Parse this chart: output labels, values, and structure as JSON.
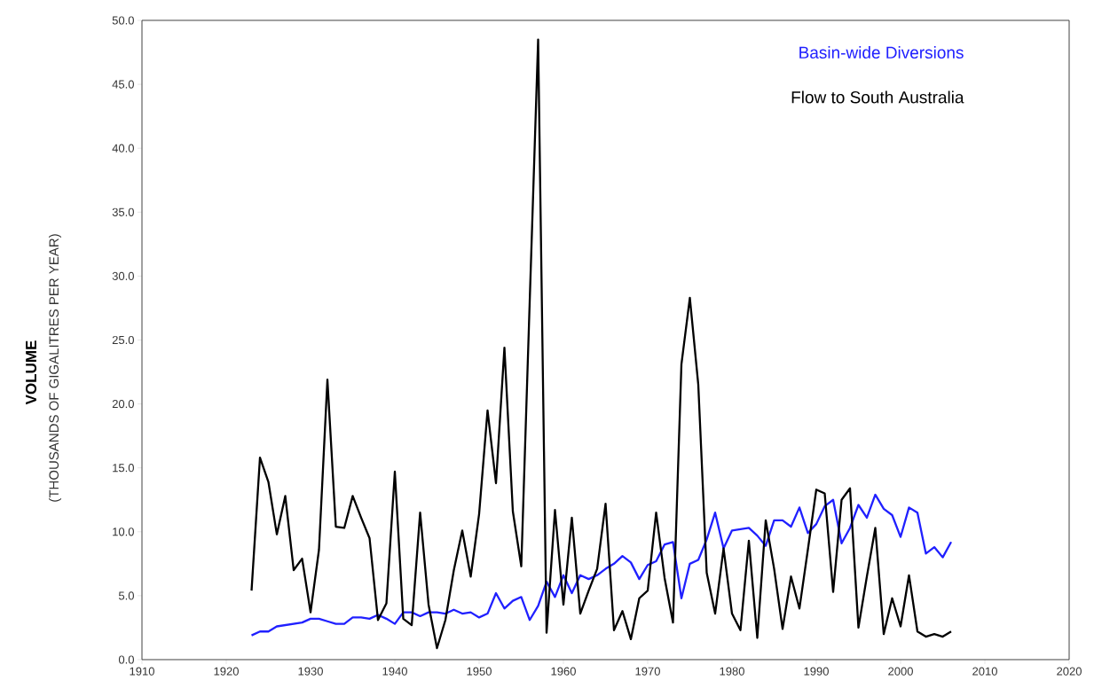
{
  "chart_data": {
    "type": "line",
    "ylabel": "(THOUSANDS OF GIGALITRES PER YEAR)",
    "annotations": [
      "VOLUME"
    ],
    "x": [
      1923,
      1924,
      1925,
      1926,
      1927,
      1928,
      1929,
      1930,
      1931,
      1932,
      1933,
      1934,
      1935,
      1936,
      1937,
      1938,
      1939,
      1940,
      1941,
      1942,
      1943,
      1944,
      1945,
      1946,
      1947,
      1948,
      1949,
      1950,
      1951,
      1952,
      1953,
      1954,
      1955,
      1956,
      1957,
      1958,
      1959,
      1960,
      1961,
      1962,
      1963,
      1964,
      1965,
      1966,
      1967,
      1968,
      1969,
      1970,
      1971,
      1972,
      1973,
      1974,
      1975,
      1976,
      1977,
      1978,
      1979,
      1980,
      1981,
      1982,
      1983,
      1984,
      1985,
      1986,
      1987,
      1988,
      1989,
      1990,
      1991,
      1992,
      1993,
      1994,
      1995,
      1996,
      1997,
      1998,
      1999,
      2000,
      2001,
      2002,
      2003,
      2004,
      2005,
      2006
    ],
    "series": [
      {
        "name": "Basin-wide Diversions",
        "color": "#2020ff",
        "values": [
          1.9,
          2.2,
          2.2,
          2.6,
          2.7,
          2.8,
          2.9,
          3.2,
          3.2,
          3.0,
          2.8,
          2.8,
          3.3,
          3.3,
          3.2,
          3.5,
          3.2,
          2.8,
          3.7,
          3.7,
          3.4,
          3.7,
          3.7,
          3.6,
          3.9,
          3.6,
          3.7,
          3.3,
          3.6,
          5.2,
          4.0,
          4.6,
          4.9,
          3.1,
          4.2,
          6.1,
          4.9,
          6.6,
          5.2,
          6.6,
          6.3,
          6.6,
          7.1,
          7.5,
          8.1,
          7.6,
          6.3,
          7.4,
          7.7,
          9.0,
          9.2,
          4.8,
          7.5,
          7.8,
          9.4,
          11.5,
          8.7,
          10.1,
          10.2,
          10.3,
          9.7,
          8.9,
          10.9,
          10.9,
          10.4,
          11.9,
          9.9,
          10.6,
          12.0,
          12.5,
          9.1,
          10.3,
          12.1,
          11.1,
          12.9,
          11.8,
          11.3,
          9.6,
          11.9,
          11.5,
          8.3,
          8.8,
          8.0,
          9.2
        ]
      },
      {
        "name": "Flow to South Australia",
        "color": "#000000",
        "values": [
          5.4,
          15.8,
          13.9,
          9.8,
          12.8,
          7.0,
          7.9,
          3.7,
          8.6,
          21.9,
          10.4,
          10.3,
          12.8,
          11.1,
          9.5,
          3.1,
          4.4,
          14.7,
          3.2,
          2.7,
          11.5,
          4.3,
          0.9,
          3.1,
          7.0,
          10.1,
          6.5,
          11.4,
          19.5,
          13.8,
          24.4,
          11.6,
          7.3,
          28.0,
          48.5,
          2.1,
          11.7,
          4.3,
          11.1,
          3.6,
          5.4,
          7.1,
          12.2,
          2.3,
          3.8,
          1.6,
          4.8,
          5.4,
          11.5,
          6.4,
          2.9,
          23.1,
          28.3,
          21.5,
          6.8,
          3.6,
          8.7,
          3.6,
          2.3,
          9.3,
          1.7,
          10.9,
          7.1,
          2.4,
          6.5,
          4.0,
          8.6,
          13.3,
          13.0,
          5.3,
          12.5,
          13.4,
          2.5,
          6.5,
          10.3,
          2.0,
          4.8,
          2.6,
          6.6,
          2.2,
          1.8,
          2.0,
          1.8,
          2.2
        ]
      }
    ],
    "xlim": [
      1910,
      2020
    ],
    "xticks": [
      1910,
      1920,
      1930,
      1940,
      1950,
      1960,
      1970,
      1980,
      1990,
      2000,
      2010,
      2020
    ],
    "ylim": [
      0,
      50
    ],
    "yticks": [
      {
        "value": 0,
        "label": "0.0"
      },
      {
        "value": 5,
        "label": "5.0"
      },
      {
        "value": 10,
        "label": "10.0"
      },
      {
        "value": 15,
        "label": "15.0"
      },
      {
        "value": 20,
        "label": "20.0"
      },
      {
        "value": 25,
        "label": "25.0"
      },
      {
        "value": 30,
        "label": "30.0"
      },
      {
        "value": 35,
        "label": "35.0"
      },
      {
        "value": 40,
        "label": "40.0"
      },
      {
        "value": 45,
        "label": "45.0"
      },
      {
        "value": 50,
        "label": "50.0"
      }
    ],
    "grid": false,
    "legend": "top right"
  }
}
